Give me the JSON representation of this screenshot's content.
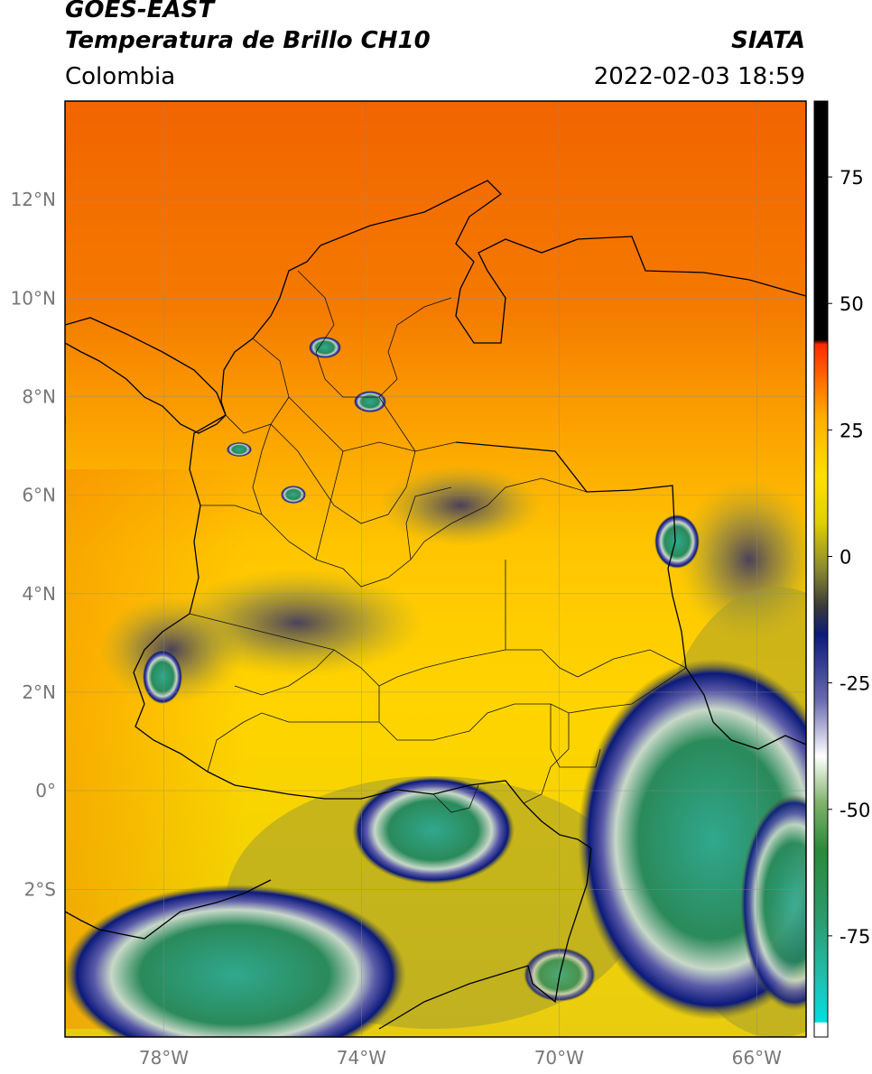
{
  "header": {
    "title_line1": "GOES-EAST",
    "title_line2": "Temperatura de Brillo CH10",
    "source": "SIATA",
    "region": "Colombia",
    "datetime": "2022-02-03 18:59"
  },
  "map": {
    "lon_range": [
      -80,
      -65
    ],
    "lat_range": [
      -5,
      14
    ],
    "lon_ticks": [
      {
        "value": -78,
        "label": "78°W"
      },
      {
        "value": -74,
        "label": "74°W"
      },
      {
        "value": -70,
        "label": "70°W"
      },
      {
        "value": -66,
        "label": "66°W"
      }
    ],
    "lat_ticks": [
      {
        "value": 12,
        "label": "12°N"
      },
      {
        "value": 10,
        "label": "10°N"
      },
      {
        "value": 8,
        "label": "8°N"
      },
      {
        "value": 6,
        "label": "6°N"
      },
      {
        "value": 4,
        "label": "4°N"
      },
      {
        "value": 2,
        "label": "2°N"
      },
      {
        "value": 0,
        "label": "0°"
      },
      {
        "value": -2,
        "label": "2°S"
      }
    ]
  },
  "colorbar": {
    "range": [
      -95,
      90
    ],
    "ticks": [
      {
        "value": 75,
        "label": "75"
      },
      {
        "value": 50,
        "label": "50"
      },
      {
        "value": 25,
        "label": "25"
      },
      {
        "value": 0,
        "label": "0"
      },
      {
        "value": -25,
        "label": "-25"
      },
      {
        "value": -50,
        "label": "-50"
      },
      {
        "value": -75,
        "label": "-75"
      }
    ],
    "colors": {
      "warm": "#f26a00",
      "mid": "#ffd000",
      "cold_navy": "#0b1a7a",
      "cold_green": "#2a8a3a",
      "coldest": "#30a88e"
    }
  }
}
